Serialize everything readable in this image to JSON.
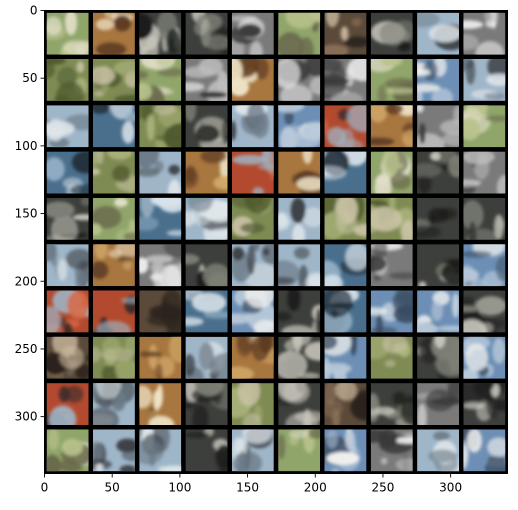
{
  "image_grid": {
    "rows": 10,
    "cols": 10,
    "tile_description": "generated low-resolution 32x32 sample images (blurry animals, vehicles, ships, airplanes) separated by thin black borders"
  },
  "axes": {
    "x_ticks": [
      "0",
      "50",
      "100",
      "150",
      "200",
      "250",
      "300"
    ],
    "y_ticks": [
      "0",
      "50",
      "100",
      "150",
      "200",
      "250",
      "300"
    ],
    "x_range": [
      0,
      342
    ],
    "y_range": [
      0,
      342
    ]
  },
  "colors": {
    "border": "#000000",
    "background": "#ffffff"
  }
}
